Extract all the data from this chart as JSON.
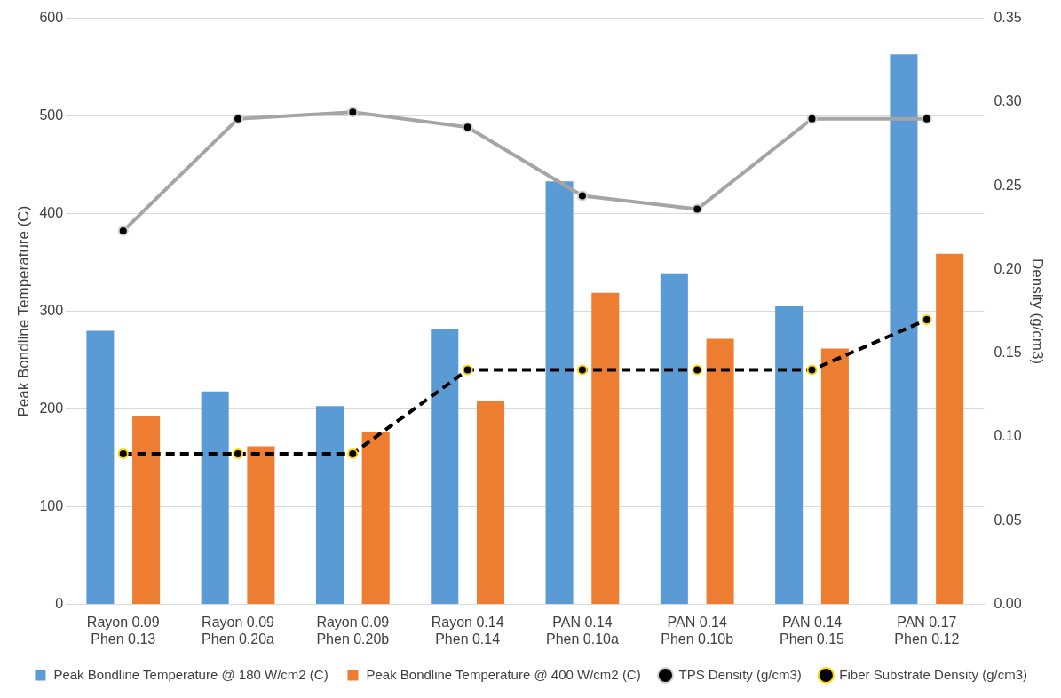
{
  "chart_data": {
    "type": "bar",
    "categories": [
      "Rayon 0.09\nPhen 0.13",
      "Rayon 0.09\nPhen 0.20a",
      "Rayon 0.09\nPhen 0.20b",
      "Rayon 0.14\nPhen 0.14",
      "PAN 0.14\nPhen 0.10a",
      "PAN 0.14\nPhen 0.10b",
      "PAN 0.14\nPhen 0.15",
      "PAN 0.17\nPhen 0.12"
    ],
    "series": [
      {
        "name": "Peak Bondline Temperature @ 180 W/cm2 (C)",
        "color": "#5b9bd5",
        "values": [
          280,
          218,
          203,
          282,
          433,
          339,
          305,
          563
        ]
      },
      {
        "name": "Peak Bondline Temperature @ 400 W/cm2 (C)",
        "color": "#ed7d31",
        "values": [
          193,
          162,
          176,
          208,
          319,
          272,
          262,
          359
        ]
      },
      {
        "name": "TPS Density (g/cm3)",
        "type": "line",
        "axis": "y2",
        "color": "#a5a5a5",
        "line_style": "solid",
        "marker": "circle",
        "values": [
          0.223,
          0.29,
          0.294,
          0.285,
          0.244,
          0.236,
          0.29,
          0.29
        ]
      },
      {
        "name": "Fiber Substrate Density (g/cm3)",
        "type": "line",
        "axis": "y2",
        "color": "#000000",
        "line_style": "dashed",
        "marker": "circle",
        "values": [
          0.09,
          0.09,
          0.09,
          0.14,
          0.14,
          0.14,
          0.14,
          0.17
        ]
      }
    ],
    "ylabel": "Peak Bondline Temperature (C)",
    "y2label": "Density (g/cm3)",
    "ylim": [
      0,
      600
    ],
    "yticks": [
      0,
      100,
      200,
      300,
      400,
      500,
      600
    ],
    "y2lim": [
      0,
      0.35
    ],
    "y2ticks": [
      {
        "value": 0,
        "label": "0.00"
      },
      {
        "value": 0.05,
        "label": "0.05"
      },
      {
        "value": 0.1,
        "label": "0.10"
      },
      {
        "value": 0.15,
        "label": "0.15"
      },
      {
        "value": 0.2,
        "label": "0.20"
      },
      {
        "value": 0.25,
        "label": "0.25"
      },
      {
        "value": 0.3,
        "label": "0.30"
      },
      {
        "value": 0.35,
        "label": "0.35"
      }
    ],
    "grid": "y",
    "legend": "bottom"
  }
}
